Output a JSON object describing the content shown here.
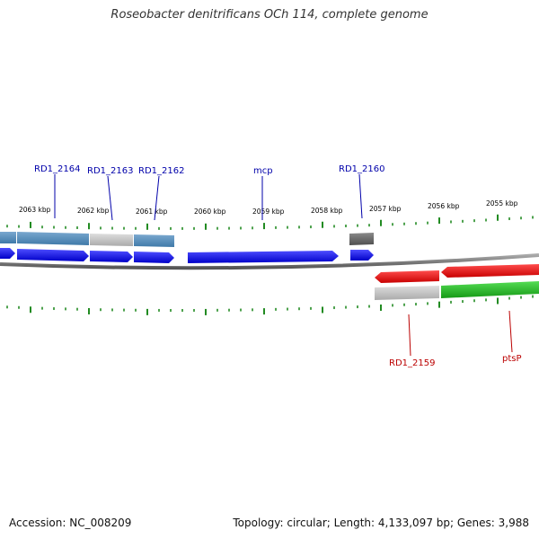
{
  "title": "Roseobacter denitrificans OCh 114, complete genome",
  "footer": {
    "accession": "Accession: NC_008209",
    "summary": "Topology: circular; Length: 4,133,097 bp; Genes: 3,988"
  },
  "scale_labels": [
    "2063 kbp",
    "2062 kbp",
    "2061 kbp",
    "2060 kbp",
    "2059 kbp",
    "2058 kbp",
    "2057 kbp",
    "2056 kbp",
    "2055 kbp"
  ],
  "gene_labels": {
    "top": [
      "RD1_2164",
      "RD1_2163",
      "RD1_2162",
      "mcp",
      "RD1_2160"
    ],
    "bottom": [
      "RD1_2159",
      "ptsP"
    ]
  },
  "colors": {
    "forward_strand": "#0000ee",
    "reverse_strand": "#ee0000",
    "tick": "#228b22",
    "top_label": "#0000aa",
    "bottom_label": "#bb0000",
    "steelblue": "#4a86b4",
    "gray": "#bbbbbb",
    "darkgray": "#666666",
    "green": "#22bb22"
  }
}
